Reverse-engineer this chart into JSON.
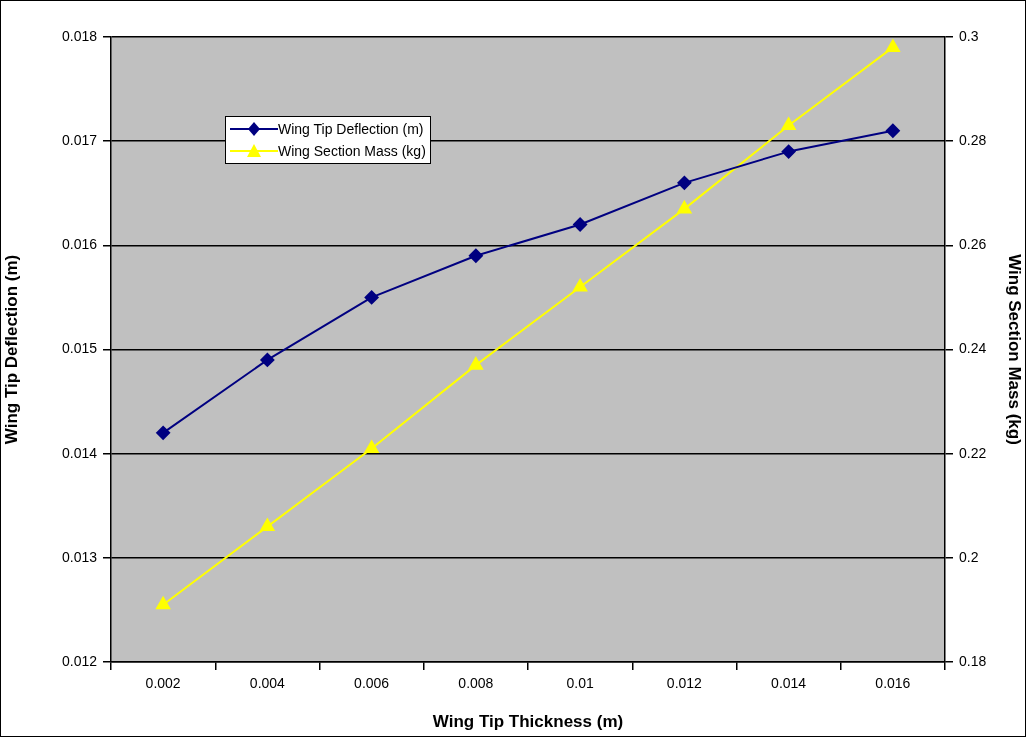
{
  "chart_data": {
    "type": "line",
    "xlabel": "Wing Tip Thickness (m)",
    "ylabel": "Wing Tip Deflection (m)",
    "y2label": "Wing Section Mass (kg)",
    "categories": [
      "0.002",
      "0.004",
      "0.006",
      "0.008",
      "0.01",
      "0.012",
      "0.014",
      "0.016"
    ],
    "series": [
      {
        "name": "Wing Tip Deflection (m)",
        "color": "#000080",
        "marker": "diamond",
        "values": [
          0.0142,
          0.0149,
          0.0155,
          0.0159,
          0.0162,
          0.0166,
          0.0169,
          0.0171
        ]
      },
      {
        "name": "Wing Section Mass (kg)",
        "color": "#ffff00",
        "marker": "triangle",
        "axis": "y2",
        "values": [
          0.191,
          0.206,
          0.221,
          0.237,
          0.252,
          0.267,
          0.283,
          0.298
        ]
      }
    ],
    "ylim": [
      0.012,
      0.018
    ],
    "yticks": [
      0.012,
      0.013,
      0.014,
      0.015,
      0.016,
      0.017,
      0.018
    ],
    "y2lim": [
      0.18,
      0.3
    ],
    "y2ticks": [
      0.18,
      0.2,
      0.22,
      0.24,
      0.26,
      0.28,
      0.3
    ],
    "grid": "y",
    "legend": "top left",
    "line_style": "solid"
  }
}
